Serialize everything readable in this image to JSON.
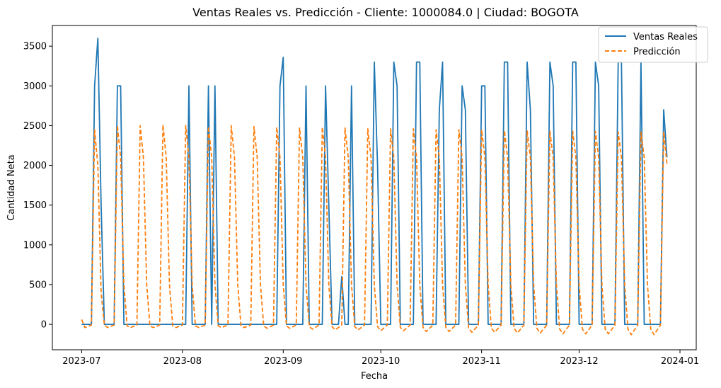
{
  "chart_data": {
    "type": "line",
    "title": "Ventas Reales vs. Predicción - Cliente: 1000084.0 | Ciudad: BOGOTA",
    "xlabel": "Fecha",
    "ylabel": "Cantidad Neta",
    "x_start": "2023-07-01",
    "x_end": "2023-12-28",
    "xlim": [
      "2023-06-22",
      "2024-01-06"
    ],
    "ylim": [
      -320,
      3760
    ],
    "yticks": [
      0,
      500,
      1000,
      1500,
      2000,
      2500,
      3000,
      3500
    ],
    "xticks": [
      {
        "date": "2023-07-01",
        "label": "2023-07"
      },
      {
        "date": "2023-08-01",
        "label": "2023-08"
      },
      {
        "date": "2023-09-01",
        "label": "2023-09"
      },
      {
        "date": "2023-10-01",
        "label": "2023-10"
      },
      {
        "date": "2023-11-01",
        "label": "2023-11"
      },
      {
        "date": "2023-12-01",
        "label": "2023-12"
      },
      {
        "date": "2024-01-01",
        "label": "2024-01"
      }
    ],
    "grid": false,
    "legend_position": "top-right",
    "series": [
      {
        "name": "Ventas Reales",
        "color": "#1f77b4",
        "style": "solid",
        "points": [
          [
            "2023-07-01",
            0
          ],
          [
            "2023-07-04",
            0
          ],
          [
            "2023-07-05",
            3000
          ],
          [
            "2023-07-06",
            3600
          ],
          [
            "2023-07-07",
            1500
          ],
          [
            "2023-07-08",
            0
          ],
          [
            "2023-07-11",
            0
          ],
          [
            "2023-07-12",
            3000
          ],
          [
            "2023-07-13",
            3000
          ],
          [
            "2023-07-14",
            0
          ],
          [
            "2023-08-02",
            0
          ],
          [
            "2023-08-03",
            3000
          ],
          [
            "2023-08-04",
            0
          ],
          [
            "2023-08-08",
            0
          ],
          [
            "2023-08-09",
            3000
          ],
          [
            "2023-08-10",
            0
          ],
          [
            "2023-08-11",
            3000
          ],
          [
            "2023-08-12",
            0
          ],
          [
            "2023-08-30",
            0
          ],
          [
            "2023-08-31",
            3000
          ],
          [
            "2023-09-01",
            3360
          ],
          [
            "2023-09-02",
            0
          ],
          [
            "2023-09-07",
            0
          ],
          [
            "2023-09-08",
            3000
          ],
          [
            "2023-09-09",
            0
          ],
          [
            "2023-09-13",
            0
          ],
          [
            "2023-09-14",
            3000
          ],
          [
            "2023-09-15",
            1500
          ],
          [
            "2023-09-16",
            0
          ],
          [
            "2023-09-18",
            0
          ],
          [
            "2023-09-19",
            600
          ],
          [
            "2023-09-20",
            0
          ],
          [
            "2023-09-21",
            0
          ],
          [
            "2023-09-22",
            3000
          ],
          [
            "2023-09-23",
            0
          ],
          [
            "2023-09-28",
            0
          ],
          [
            "2023-09-29",
            3300
          ],
          [
            "2023-09-30",
            2000
          ],
          [
            "2023-10-01",
            0
          ],
          [
            "2023-10-04",
            0
          ],
          [
            "2023-10-05",
            3300
          ],
          [
            "2023-10-06",
            3000
          ],
          [
            "2023-10-07",
            0
          ],
          [
            "2023-10-11",
            0
          ],
          [
            "2023-10-12",
            3300
          ],
          [
            "2023-10-13",
            3300
          ],
          [
            "2023-10-14",
            0
          ],
          [
            "2023-10-18",
            0
          ],
          [
            "2023-10-19",
            2700
          ],
          [
            "2023-10-20",
            3300
          ],
          [
            "2023-10-21",
            0
          ],
          [
            "2023-10-25",
            0
          ],
          [
            "2023-10-26",
            3000
          ],
          [
            "2023-10-27",
            2700
          ],
          [
            "2023-10-28",
            0
          ],
          [
            "2023-10-31",
            0
          ],
          [
            "2023-11-01",
            3000
          ],
          [
            "2023-11-02",
            3000
          ],
          [
            "2023-11-03",
            0
          ],
          [
            "2023-11-07",
            0
          ],
          [
            "2023-11-08",
            3300
          ],
          [
            "2023-11-09",
            3300
          ],
          [
            "2023-11-10",
            0
          ],
          [
            "2023-11-14",
            0
          ],
          [
            "2023-11-15",
            3300
          ],
          [
            "2023-11-16",
            2700
          ],
          [
            "2023-11-17",
            0
          ],
          [
            "2023-11-21",
            0
          ],
          [
            "2023-11-22",
            3300
          ],
          [
            "2023-11-23",
            3000
          ],
          [
            "2023-11-24",
            0
          ],
          [
            "2023-11-28",
            0
          ],
          [
            "2023-11-29",
            3300
          ],
          [
            "2023-11-30",
            3300
          ],
          [
            "2023-12-01",
            0
          ],
          [
            "2023-12-05",
            0
          ],
          [
            "2023-12-06",
            3300
          ],
          [
            "2023-12-07",
            3000
          ],
          [
            "2023-12-08",
            0
          ],
          [
            "2023-12-12",
            0
          ],
          [
            "2023-12-13",
            3300
          ],
          [
            "2023-12-14",
            3300
          ],
          [
            "2023-12-15",
            0
          ],
          [
            "2023-12-19",
            0
          ],
          [
            "2023-12-20",
            3300
          ],
          [
            "2023-12-21",
            0
          ],
          [
            "2023-12-26",
            0
          ],
          [
            "2023-12-27",
            2700
          ],
          [
            "2023-12-28",
            2100
          ]
        ]
      },
      {
        "name": "Predicción",
        "color": "#ff7f0e",
        "style": "dashed",
        "points": [
          [
            "2023-07-01",
            60
          ],
          [
            "2023-07-02",
            -40
          ],
          [
            "2023-07-04",
            -10
          ],
          [
            "2023-07-05",
            2450
          ],
          [
            "2023-07-06",
            2000
          ],
          [
            "2023-07-07",
            400
          ],
          [
            "2023-07-08",
            -10
          ],
          [
            "2023-07-09",
            -40
          ],
          [
            "2023-07-11",
            -10
          ],
          [
            "2023-07-12",
            2500
          ],
          [
            "2023-07-13",
            2100
          ],
          [
            "2023-07-14",
            500
          ],
          [
            "2023-07-15",
            -20
          ],
          [
            "2023-07-16",
            -40
          ],
          [
            "2023-07-18",
            -10
          ],
          [
            "2023-07-19",
            2500
          ],
          [
            "2023-07-20",
            2100
          ],
          [
            "2023-07-21",
            500
          ],
          [
            "2023-07-22",
            -20
          ],
          [
            "2023-07-23",
            -40
          ],
          [
            "2023-07-25",
            -10
          ],
          [
            "2023-07-26",
            2510
          ],
          [
            "2023-07-27",
            2100
          ],
          [
            "2023-07-28",
            500
          ],
          [
            "2023-07-29",
            -20
          ],
          [
            "2023-07-30",
            -40
          ],
          [
            "2023-08-01",
            -10
          ],
          [
            "2023-08-02",
            2500
          ],
          [
            "2023-08-03",
            2100
          ],
          [
            "2023-08-04",
            500
          ],
          [
            "2023-08-05",
            -20
          ],
          [
            "2023-08-06",
            -40
          ],
          [
            "2023-08-08",
            -10
          ],
          [
            "2023-08-09",
            2490
          ],
          [
            "2023-08-10",
            2100
          ],
          [
            "2023-08-11",
            500
          ],
          [
            "2023-08-12",
            -20
          ],
          [
            "2023-08-13",
            -40
          ],
          [
            "2023-08-15",
            -10
          ],
          [
            "2023-08-16",
            2500
          ],
          [
            "2023-08-17",
            2100
          ],
          [
            "2023-08-18",
            500
          ],
          [
            "2023-08-19",
            -20
          ],
          [
            "2023-08-20",
            -40
          ],
          [
            "2023-08-22",
            -10
          ],
          [
            "2023-08-23",
            2490
          ],
          [
            "2023-08-24",
            2100
          ],
          [
            "2023-08-25",
            500
          ],
          [
            "2023-08-26",
            -20
          ],
          [
            "2023-08-27",
            -50
          ],
          [
            "2023-08-29",
            -10
          ],
          [
            "2023-08-30",
            2480
          ],
          [
            "2023-08-31",
            2100
          ],
          [
            "2023-09-01",
            500
          ],
          [
            "2023-09-02",
            -20
          ],
          [
            "2023-09-03",
            -50
          ],
          [
            "2023-09-05",
            -10
          ],
          [
            "2023-09-06",
            2470
          ],
          [
            "2023-09-07",
            2100
          ],
          [
            "2023-09-08",
            500
          ],
          [
            "2023-09-09",
            -30
          ],
          [
            "2023-09-10",
            -60
          ],
          [
            "2023-09-12",
            -10
          ],
          [
            "2023-09-13",
            2480
          ],
          [
            "2023-09-14",
            2100
          ],
          [
            "2023-09-15",
            500
          ],
          [
            "2023-09-16",
            -30
          ],
          [
            "2023-09-17",
            -70
          ],
          [
            "2023-09-19",
            -10
          ],
          [
            "2023-09-20",
            2470
          ],
          [
            "2023-09-21",
            2100
          ],
          [
            "2023-09-22",
            500
          ],
          [
            "2023-09-23",
            -30
          ],
          [
            "2023-09-24",
            -70
          ],
          [
            "2023-09-26",
            -10
          ],
          [
            "2023-09-27",
            2460
          ],
          [
            "2023-09-28",
            2100
          ],
          [
            "2023-09-29",
            500
          ],
          [
            "2023-09-30",
            -30
          ],
          [
            "2023-10-01",
            -80
          ],
          [
            "2023-10-03",
            -10
          ],
          [
            "2023-10-04",
            2460
          ],
          [
            "2023-10-05",
            2100
          ],
          [
            "2023-10-06",
            500
          ],
          [
            "2023-10-07",
            -40
          ],
          [
            "2023-10-08",
            -80
          ],
          [
            "2023-10-10",
            -10
          ],
          [
            "2023-10-11",
            2460
          ],
          [
            "2023-10-12",
            2100
          ],
          [
            "2023-10-13",
            500
          ],
          [
            "2023-10-14",
            -40
          ],
          [
            "2023-10-15",
            -90
          ],
          [
            "2023-10-17",
            -10
          ],
          [
            "2023-10-18",
            2450
          ],
          [
            "2023-10-19",
            2100
          ],
          [
            "2023-10-20",
            500
          ],
          [
            "2023-10-21",
            -40
          ],
          [
            "2023-10-22",
            -90
          ],
          [
            "2023-10-24",
            -10
          ],
          [
            "2023-10-25",
            2450
          ],
          [
            "2023-10-26",
            2100
          ],
          [
            "2023-10-27",
            500
          ],
          [
            "2023-10-28",
            -50
          ],
          [
            "2023-10-29",
            -100
          ],
          [
            "2023-10-31",
            -10
          ],
          [
            "2023-11-01",
            2450
          ],
          [
            "2023-11-02",
            2100
          ],
          [
            "2023-11-03",
            500
          ],
          [
            "2023-11-04",
            -50
          ],
          [
            "2023-11-05",
            -100
          ],
          [
            "2023-11-07",
            -10
          ],
          [
            "2023-11-08",
            2440
          ],
          [
            "2023-11-09",
            2100
          ],
          [
            "2023-11-10",
            500
          ],
          [
            "2023-11-11",
            -50
          ],
          [
            "2023-11-12",
            -110
          ],
          [
            "2023-11-14",
            -10
          ],
          [
            "2023-11-15",
            2440
          ],
          [
            "2023-11-16",
            2100
          ],
          [
            "2023-11-17",
            500
          ],
          [
            "2023-11-18",
            -50
          ],
          [
            "2023-11-19",
            -110
          ],
          [
            "2023-11-21",
            -10
          ],
          [
            "2023-11-22",
            2430
          ],
          [
            "2023-11-23",
            2100
          ],
          [
            "2023-11-24",
            500
          ],
          [
            "2023-11-25",
            -60
          ],
          [
            "2023-11-26",
            -120
          ],
          [
            "2023-11-28",
            -10
          ],
          [
            "2023-11-29",
            2430
          ],
          [
            "2023-11-30",
            2100
          ],
          [
            "2023-12-01",
            500
          ],
          [
            "2023-12-02",
            -60
          ],
          [
            "2023-12-03",
            -120
          ],
          [
            "2023-12-05",
            -10
          ],
          [
            "2023-12-06",
            2430
          ],
          [
            "2023-12-07",
            2100
          ],
          [
            "2023-12-08",
            500
          ],
          [
            "2023-12-09",
            -60
          ],
          [
            "2023-12-10",
            -120
          ],
          [
            "2023-12-12",
            -10
          ],
          [
            "2023-12-13",
            2420
          ],
          [
            "2023-12-14",
            2100
          ],
          [
            "2023-12-15",
            500
          ],
          [
            "2023-12-16",
            -60
          ],
          [
            "2023-12-17",
            -130
          ],
          [
            "2023-12-19",
            -10
          ],
          [
            "2023-12-20",
            2420
          ],
          [
            "2023-12-21",
            2100
          ],
          [
            "2023-12-22",
            500
          ],
          [
            "2023-12-23",
            -60
          ],
          [
            "2023-12-24",
            -130
          ],
          [
            "2023-12-26",
            -10
          ],
          [
            "2023-12-27",
            2420
          ],
          [
            "2023-12-28",
            2020
          ]
        ]
      }
    ]
  }
}
